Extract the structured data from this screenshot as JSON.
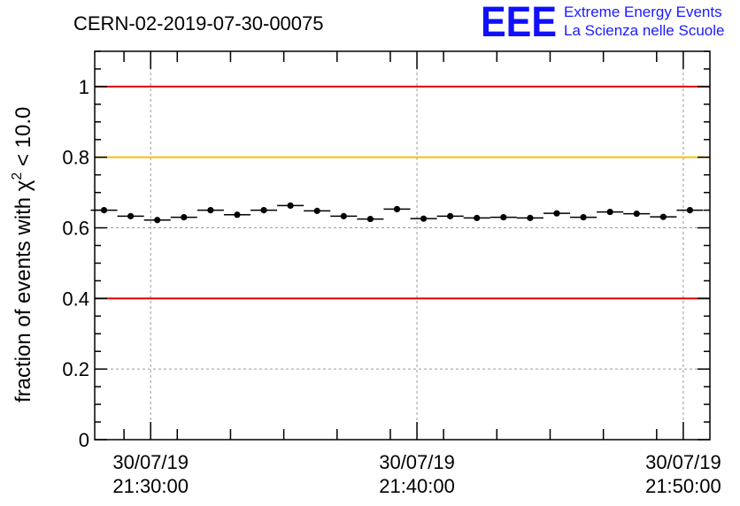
{
  "chart_data": {
    "type": "scatter",
    "title": "CERN-02-2019-07-30-00075",
    "ylabel_base": "fraction of events with χ",
    "ylabel_sup": "2",
    "ylabel_suffix": " < 10.0",
    "ylim": [
      0,
      1.1
    ],
    "yticks": [
      "0",
      "0.2",
      "0.4",
      "0.6",
      "0.8",
      "1"
    ],
    "ytick_values": [
      0,
      0.2,
      0.4,
      0.6,
      0.8,
      1.0
    ],
    "xticks": [
      {
        "date": "30/07/19",
        "time": "21:30:00",
        "minutes": 0
      },
      {
        "date": "30/07/19",
        "time": "21:40:00",
        "minutes": 10
      },
      {
        "date": "30/07/19",
        "time": "21:50:00",
        "minutes": 20
      }
    ],
    "xlim_minutes": [
      -2.1,
      21.0
    ],
    "reference_lines": [
      {
        "value": 1.0,
        "color": "#e00000"
      },
      {
        "value": 0.8,
        "color": "#ffc000"
      },
      {
        "value": 0.4,
        "color": "#e00000"
      }
    ],
    "bin_width_minutes": 1.0,
    "x_minutes": [
      -1.75,
      -0.75,
      0.25,
      1.25,
      2.25,
      3.25,
      4.25,
      5.25,
      6.25,
      7.25,
      8.25,
      9.25,
      10.25,
      11.25,
      12.25,
      13.25,
      14.25,
      15.25,
      16.25,
      17.25,
      18.25,
      19.25,
      20.25
    ],
    "values": [
      0.65,
      0.633,
      0.622,
      0.63,
      0.65,
      0.637,
      0.65,
      0.663,
      0.648,
      0.633,
      0.625,
      0.653,
      0.626,
      0.633,
      0.628,
      0.63,
      0.628,
      0.641,
      0.63,
      0.645,
      0.64,
      0.631,
      0.65
    ],
    "errors": [
      0.008,
      0.008,
      0.008,
      0.008,
      0.008,
      0.008,
      0.008,
      0.008,
      0.008,
      0.008,
      0.008,
      0.008,
      0.008,
      0.008,
      0.008,
      0.008,
      0.008,
      0.008,
      0.008,
      0.008,
      0.008,
      0.008,
      0.008
    ]
  },
  "logo": {
    "mark": "EEE",
    "line1": "Extreme Energy Events",
    "line2": "La Scienza nelle Scuole",
    "color": "#1010ff"
  }
}
